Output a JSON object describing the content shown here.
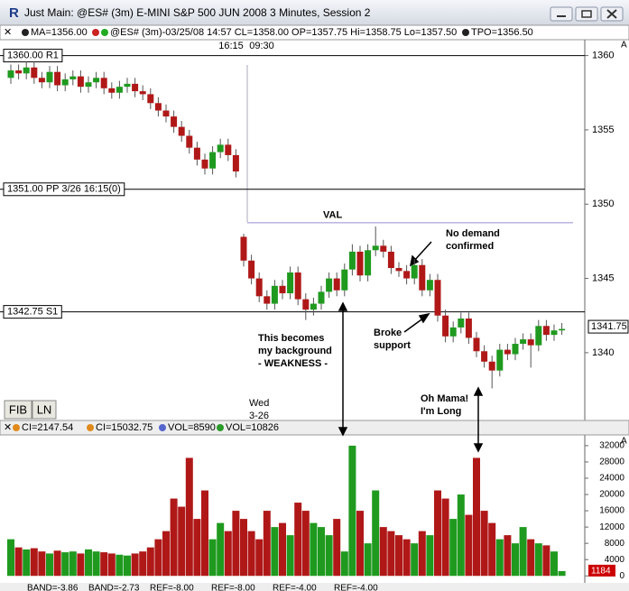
{
  "window_title": "Just Main: @ES# (3m) E-MINI S&P 500 JUN 2008 3 Minutes, Session 2",
  "header": {
    "ma": "MA=1356.00",
    "bar_info": "@ES# (3m)-03/25/08 14:57 CL=1358.00 OP=1357.75 Hi=1358.75 Lo=1357.50",
    "tpo": "TPO=1356.50",
    "times": [
      "16:15",
      "09:30"
    ]
  },
  "buttons": [
    "FIB",
    "LN"
  ],
  "date_label": [
    "Wed",
    "3-26"
  ],
  "chart_data": {
    "type": "candlestick",
    "up_color": "#1f9a1f",
    "down_color": "#b01818",
    "ylim": [
      1335.5,
      1360.4
    ],
    "yticks": [
      1360,
      1355,
      1350,
      1345,
      1340
    ],
    "last_price": 1341.75,
    "levels": [
      {
        "value": 1360,
        "label": "1360.00 R1"
      },
      {
        "value": 1351,
        "label": "1351.00 PP 3/26 16:15(0)"
      },
      {
        "value": 1342.75,
        "label": "1342.75 S1"
      }
    ],
    "val_level": {
      "value": 1348.75,
      "label": "VAL"
    },
    "annotations": [
      "No demand confirmed",
      "Broke support",
      "This becomes my background - WEAKNESS -",
      "Oh Mama! I'm Long"
    ],
    "ohlc": [
      [
        1358.5,
        1359.4,
        1358.1,
        1359.0
      ],
      [
        1359.0,
        1359.4,
        1358.4,
        1358.8
      ],
      [
        1358.8,
        1359.6,
        1358.4,
        1359.2
      ],
      [
        1359.2,
        1359.6,
        1358.1,
        1358.5
      ],
      [
        1358.5,
        1358.9,
        1357.8,
        1358.2
      ],
      [
        1358.2,
        1359.3,
        1357.8,
        1358.9
      ],
      [
        1358.9,
        1359.3,
        1357.6,
        1358.0
      ],
      [
        1358.0,
        1358.8,
        1357.6,
        1358.4
      ],
      [
        1358.4,
        1359.0,
        1358.0,
        1358.6
      ],
      [
        1358.6,
        1359.0,
        1357.5,
        1357.9
      ],
      [
        1357.9,
        1358.6,
        1357.5,
        1358.2
      ],
      [
        1358.2,
        1358.9,
        1357.8,
        1358.5
      ],
      [
        1358.5,
        1358.9,
        1357.4,
        1357.8
      ],
      [
        1357.8,
        1358.2,
        1357.1,
        1357.5
      ],
      [
        1357.5,
        1358.3,
        1357.1,
        1357.9
      ],
      [
        1357.9,
        1358.5,
        1357.5,
        1358.1
      ],
      [
        1358.1,
        1358.5,
        1357.2,
        1357.6
      ],
      [
        1357.6,
        1358.0,
        1357.0,
        1357.4
      ],
      [
        1357.4,
        1357.8,
        1356.4,
        1356.8
      ],
      [
        1356.8,
        1357.2,
        1355.9,
        1356.3
      ],
      [
        1356.3,
        1356.7,
        1355.5,
        1355.9
      ],
      [
        1355.9,
        1356.3,
        1354.8,
        1355.2
      ],
      [
        1355.2,
        1355.6,
        1354.2,
        1354.6
      ],
      [
        1354.6,
        1355.0,
        1353.4,
        1353.8
      ],
      [
        1353.8,
        1354.2,
        1352.6,
        1353.0
      ],
      [
        1353.0,
        1353.4,
        1352.0,
        1352.4
      ],
      [
        1352.4,
        1353.9,
        1352.0,
        1353.5
      ],
      [
        1353.5,
        1354.4,
        1353.1,
        1354.0
      ],
      [
        1354.0,
        1354.4,
        1352.9,
        1353.3
      ],
      [
        1353.3,
        1353.7,
        1351.8,
        1352.2
      ],
      [
        1347.8,
        1348.0,
        1345.8,
        1346.2
      ],
      [
        1346.2,
        1346.6,
        1344.6,
        1345.0
      ],
      [
        1345.0,
        1345.4,
        1343.4,
        1343.8
      ],
      [
        1343.8,
        1344.2,
        1342.9,
        1343.3
      ],
      [
        1343.3,
        1344.9,
        1342.9,
        1344.5
      ],
      [
        1344.5,
        1344.9,
        1343.6,
        1344.0
      ],
      [
        1344.0,
        1345.8,
        1343.6,
        1345.4
      ],
      [
        1345.4,
        1345.8,
        1343.2,
        1343.6
      ],
      [
        1343.6,
        1344.0,
        1342.2,
        1342.9
      ],
      [
        1342.9,
        1343.7,
        1342.5,
        1343.3
      ],
      [
        1343.3,
        1344.5,
        1342.9,
        1344.1
      ],
      [
        1344.1,
        1345.4,
        1343.7,
        1345.0
      ],
      [
        1345.0,
        1345.4,
        1343.8,
        1344.2
      ],
      [
        1344.2,
        1346.0,
        1343.8,
        1345.6
      ],
      [
        1345.6,
        1347.3,
        1345.2,
        1346.8
      ],
      [
        1346.8,
        1347.2,
        1344.8,
        1345.2
      ],
      [
        1345.2,
        1347.3,
        1344.8,
        1346.9
      ],
      [
        1346.9,
        1348.5,
        1346.5,
        1347.2
      ],
      [
        1347.2,
        1347.6,
        1346.4,
        1346.8
      ],
      [
        1346.8,
        1347.2,
        1345.3,
        1345.7
      ],
      [
        1345.7,
        1346.1,
        1345.1,
        1345.5
      ],
      [
        1345.5,
        1345.9,
        1344.6,
        1345.0
      ],
      [
        1345.0,
        1346.3,
        1344.6,
        1345.9
      ],
      [
        1345.9,
        1346.3,
        1343.8,
        1344.2
      ],
      [
        1344.2,
        1345.3,
        1343.8,
        1344.9
      ],
      [
        1344.9,
        1345.3,
        1342.1,
        1342.5
      ],
      [
        1342.5,
        1342.9,
        1340.7,
        1341.1
      ],
      [
        1341.1,
        1342.1,
        1340.7,
        1341.7
      ],
      [
        1341.7,
        1342.7,
        1341.3,
        1342.3
      ],
      [
        1342.3,
        1342.7,
        1340.6,
        1341.0
      ],
      [
        1341.0,
        1341.4,
        1339.7,
        1340.1
      ],
      [
        1340.1,
        1340.5,
        1339.0,
        1339.4
      ],
      [
        1339.4,
        1339.8,
        1337.6,
        1338.8
      ],
      [
        1338.8,
        1340.6,
        1338.4,
        1340.2
      ],
      [
        1340.2,
        1340.6,
        1339.5,
        1339.9
      ],
      [
        1339.9,
        1341.0,
        1339.5,
        1340.6
      ],
      [
        1340.6,
        1341.3,
        1340.2,
        1340.9
      ],
      [
        1340.9,
        1341.3,
        1339.0,
        1340.5
      ],
      [
        1340.5,
        1342.2,
        1340.1,
        1341.8
      ],
      [
        1341.8,
        1342.2,
        1340.8,
        1341.2
      ],
      [
        1341.2,
        1341.9,
        1340.8,
        1341.5
      ],
      [
        1341.5,
        1342.0,
        1341.2,
        1341.6
      ]
    ],
    "volume_header": [
      "CI=2147.54",
      "CI=15032.75",
      "VOL=8590",
      "VOL=10826"
    ],
    "volume": [
      9000,
      7000,
      6500,
      6800,
      6000,
      5500,
      6200,
      5800,
      6000,
      5500,
      6500,
      6000,
      5800,
      5500,
      5200,
      5000,
      5500,
      6000,
      7000,
      9000,
      11000,
      19000,
      17000,
      29000,
      14000,
      21000,
      9000,
      13000,
      11000,
      16000,
      14000,
      11000,
      9000,
      16000,
      12000,
      13000,
      10000,
      18000,
      16000,
      13000,
      12000,
      10000,
      14000,
      6000,
      32000,
      16000,
      8000,
      21000,
      12000,
      11000,
      10000,
      9000,
      8000,
      11000,
      10000,
      21000,
      19000,
      14000,
      20000,
      15000,
      29000,
      16000,
      13000,
      9000,
      10000,
      8000,
      12000,
      9000,
      8000,
      7500,
      6000,
      1184
    ],
    "volume_ylim": [
      -1500,
      34200
    ],
    "volume_yticks": [
      32000,
      28000,
      24000,
      20000,
      16000,
      12000,
      8000,
      4000,
      0
    ],
    "last_volume": 1184,
    "footer": [
      "BAND=-3.86",
      "BAND=-2.73",
      "REF=-8.00",
      "REF=-8.00",
      "REF=-4.00",
      "REF=-4.00"
    ]
  }
}
